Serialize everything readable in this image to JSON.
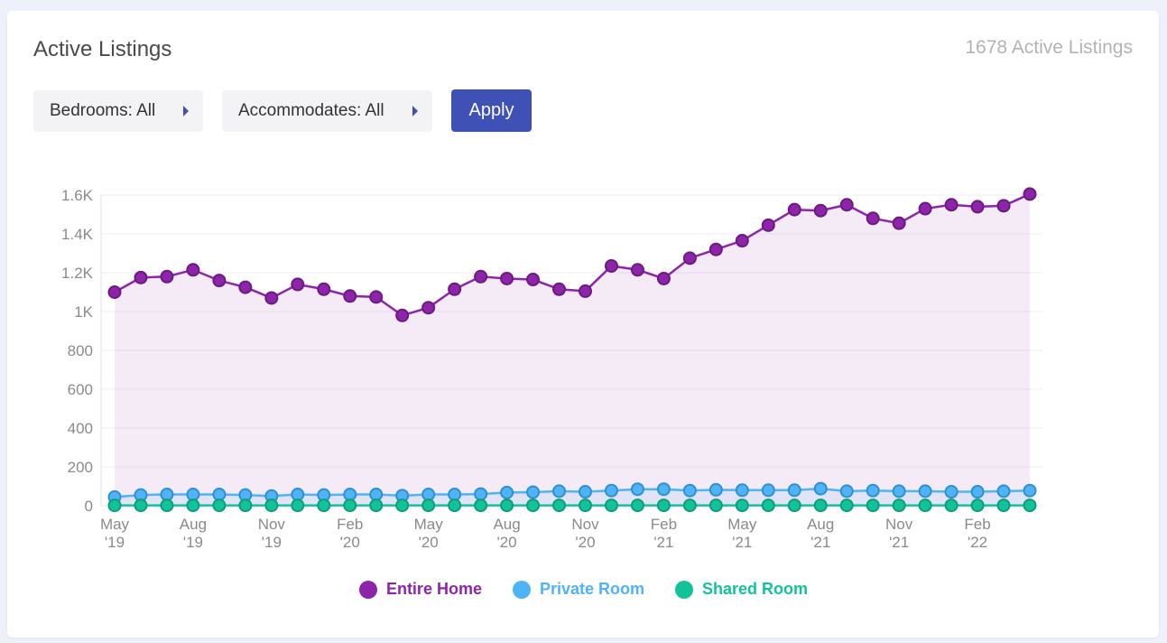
{
  "header": {
    "title": "Active Listings",
    "count_label": "1678 Active Listings"
  },
  "filters": {
    "bedrooms_label": "Bedrooms: All",
    "accommodates_label": "Accommodates: All",
    "apply_label": "Apply"
  },
  "legend": [
    {
      "label": "Entire Home",
      "color": "#8e24aa"
    },
    {
      "label": "Private Room",
      "color": "#4fb3f6"
    },
    {
      "label": "Shared Room",
      "color": "#12c39a"
    }
  ],
  "chart_data": {
    "type": "line",
    "title": "Active Listings",
    "xlabel": "",
    "ylabel": "",
    "ylim": [
      0,
      1600
    ],
    "grid": true,
    "legend_position": "bottom",
    "y_ticks": [
      "0",
      "200",
      "400",
      "600",
      "800",
      "1K",
      "1.2K",
      "1.4K",
      "1.6K"
    ],
    "y_tick_values": [
      0,
      200,
      400,
      600,
      800,
      1000,
      1200,
      1400,
      1600
    ],
    "x_ticks": [
      {
        "index": 0,
        "line1": "May",
        "line2": "'19"
      },
      {
        "index": 3,
        "line1": "Aug",
        "line2": "'19"
      },
      {
        "index": 6,
        "line1": "Nov",
        "line2": "'19"
      },
      {
        "index": 9,
        "line1": "Feb",
        "line2": "'20"
      },
      {
        "index": 12,
        "line1": "May",
        "line2": "'20"
      },
      {
        "index": 15,
        "line1": "Aug",
        "line2": "'20"
      },
      {
        "index": 18,
        "line1": "Nov",
        "line2": "'20"
      },
      {
        "index": 21,
        "line1": "Feb",
        "line2": "'21"
      },
      {
        "index": 24,
        "line1": "May",
        "line2": "'21"
      },
      {
        "index": 27,
        "line1": "Aug",
        "line2": "'21"
      },
      {
        "index": 30,
        "line1": "Nov",
        "line2": "'21"
      },
      {
        "index": 33,
        "line1": "Feb",
        "line2": "'22"
      }
    ],
    "series": [
      {
        "name": "Entire Home",
        "color": "#8e24aa",
        "values": [
          1100,
          1175,
          1180,
          1215,
          1160,
          1125,
          1070,
          1140,
          1115,
          1080,
          1075,
          980,
          1020,
          1115,
          1180,
          1170,
          1165,
          1115,
          1105,
          1235,
          1215,
          1170,
          1275,
          1320,
          1365,
          1445,
          1525,
          1520,
          1550,
          1480,
          1455,
          1530,
          1550,
          1540,
          1545,
          1605
        ]
      },
      {
        "name": "Private Room",
        "color": "#4fb3f6",
        "values": [
          45,
          55,
          58,
          58,
          58,
          55,
          50,
          58,
          55,
          58,
          58,
          52,
          58,
          58,
          60,
          68,
          70,
          75,
          72,
          78,
          85,
          85,
          78,
          82,
          80,
          80,
          80,
          88,
          75,
          78,
          75,
          75,
          72,
          72,
          75,
          78
        ]
      },
      {
        "name": "Shared Room",
        "color": "#12c39a",
        "values": [
          2,
          2,
          2,
          2,
          2,
          2,
          2,
          2,
          2,
          2,
          2,
          2,
          2,
          2,
          2,
          2,
          2,
          2,
          2,
          2,
          2,
          2,
          2,
          2,
          2,
          2,
          2,
          2,
          2,
          2,
          2,
          2,
          2,
          2,
          2,
          2
        ]
      }
    ]
  }
}
